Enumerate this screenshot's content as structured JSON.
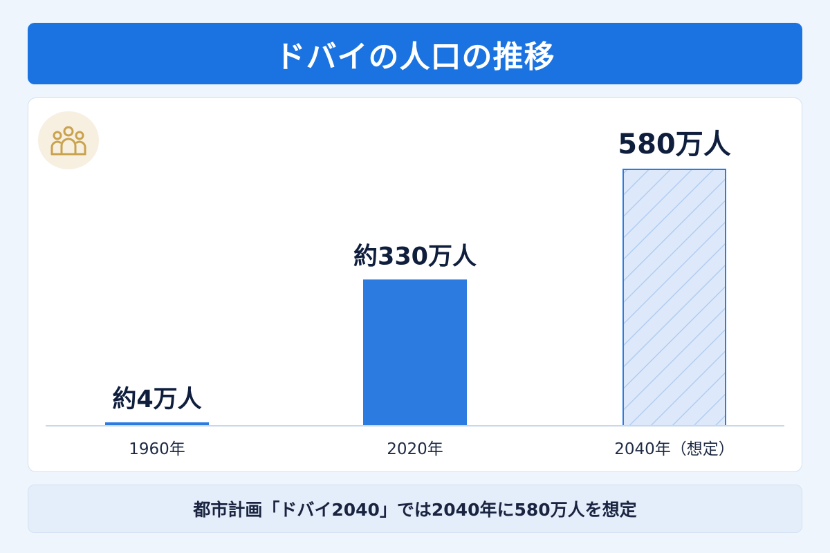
{
  "header": {
    "title": "ドバイの人口の推移"
  },
  "icons": {
    "people": "people-group-icon"
  },
  "colors": {
    "accent": "#1a73e0",
    "bar_fill": "#2b7be0",
    "projection_fill": "#dde9fb",
    "projection_stroke": "#2b7be0",
    "label_text": "#0f1e3d"
  },
  "chart_data": {
    "type": "bar",
    "categories": [
      "1960年",
      "2020年",
      "2040年（想定）"
    ],
    "values": [
      4,
      330,
      580
    ],
    "unit": "万人",
    "data_labels": [
      "約4万人",
      "約330万人",
      "580万人"
    ],
    "projected": [
      false,
      false,
      true
    ],
    "ylim": [
      0,
      580
    ],
    "grid": false,
    "legend": "none"
  },
  "footer": {
    "note": "都市計画「ドバイ2040」では2040年に580万人を想定"
  }
}
